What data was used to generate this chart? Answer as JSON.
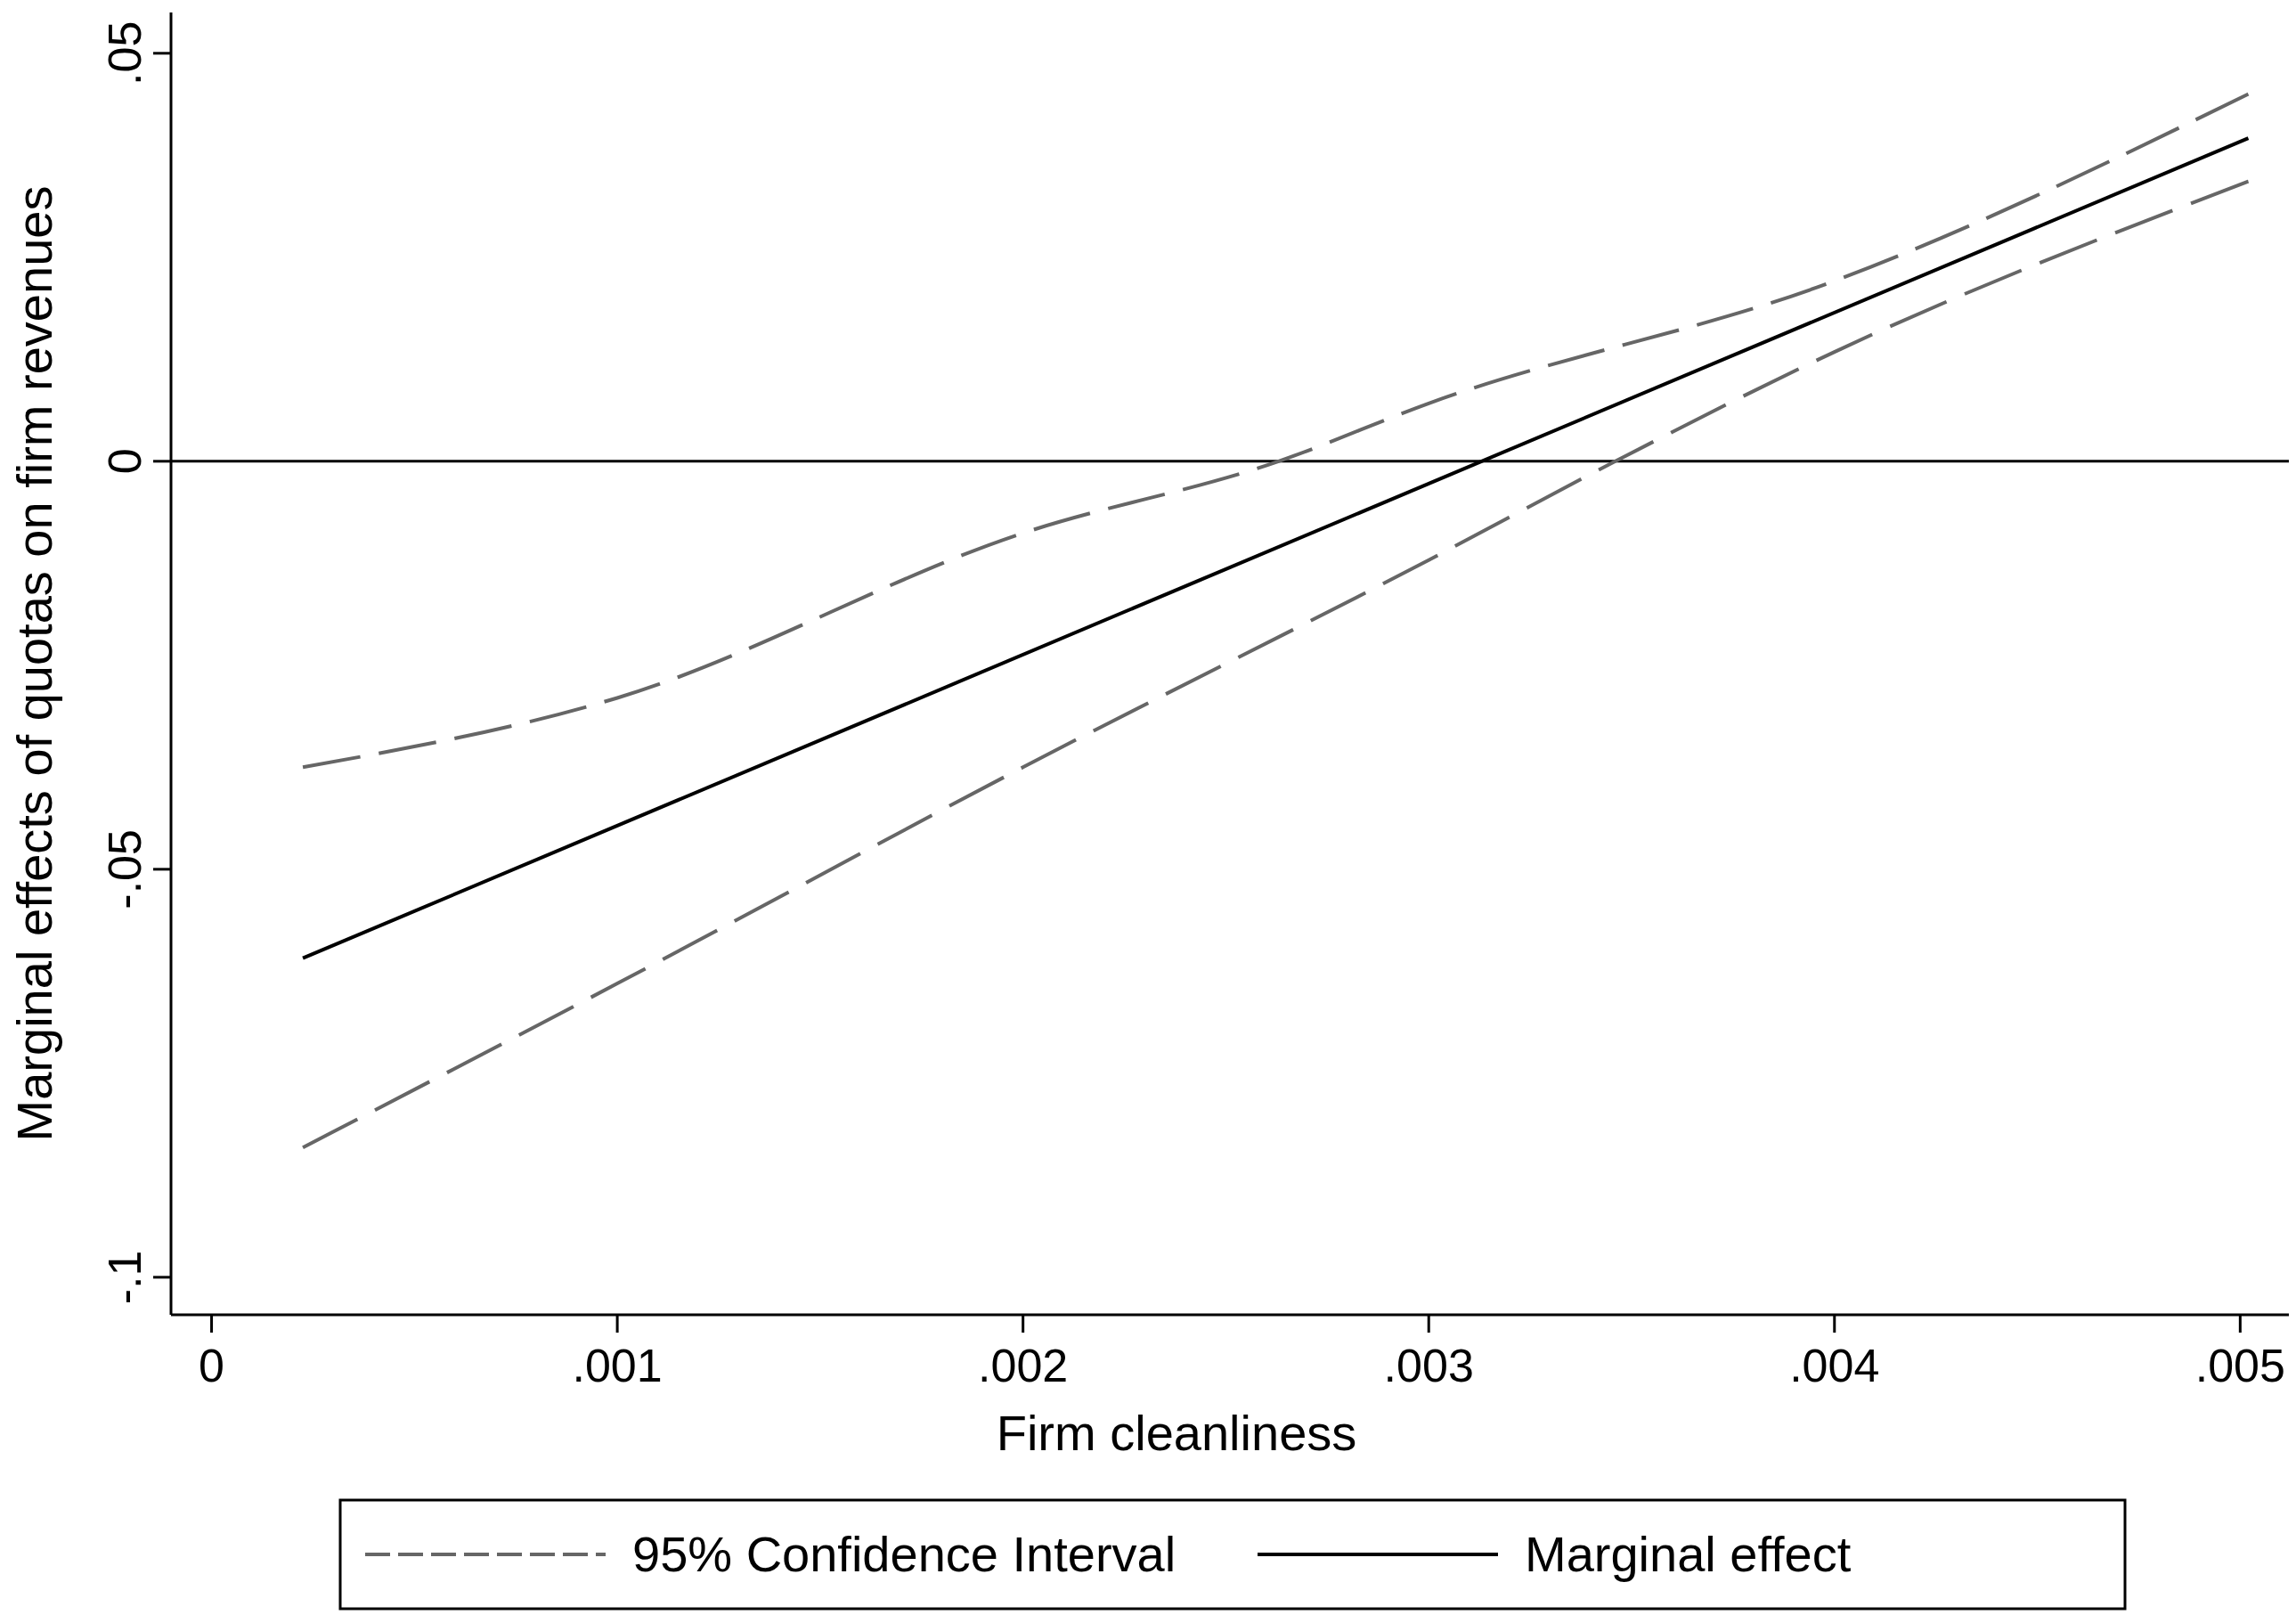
{
  "chart_data": {
    "type": "line",
    "xlabel": "Firm cleanliness",
    "ylabel": "Marginal effects of quotas on firm revenues",
    "xlim": [
      -0.0001,
      0.00512
    ],
    "ylim": [
      -0.1046,
      0.055
    ],
    "xticks": [
      0,
      {
        "value": 0.001,
        "label": ".001"
      },
      {
        "value": 0.002,
        "label": ".002"
      },
      {
        "value": 0.003,
        "label": ".003"
      },
      {
        "value": 0.004,
        "label": ".004"
      },
      {
        "value": 0.005,
        "label": ".005"
      }
    ],
    "yticks": [
      {
        "value": -0.1,
        "label": "-.1"
      },
      {
        "value": -0.05,
        "label": "-.05"
      },
      0,
      {
        "value": 0.05,
        "label": ".05"
      }
    ],
    "grid": false,
    "legend": "bottom",
    "marker": "none",
    "ref_lines": [
      {
        "axis": "y",
        "value": 0,
        "color": "#000000",
        "line_style": "solid"
      }
    ],
    "series": [
      {
        "name": "95% Confidence Interval",
        "color": "#666666",
        "line_style": "dashed",
        "x": [
          0.000225,
          0.001,
          0.002,
          0.00263,
          0.003,
          0.004,
          0.00502
        ],
        "values": [
          -0.0375,
          -0.029,
          -0.0088,
          0,
          0.0071,
          0.0221,
          0.045
        ]
      },
      {
        "color": "#666666",
        "line_style": "dashed",
        "x": [
          0.000225,
          0.001,
          0.002,
          0.003,
          0.00346,
          0.004,
          0.00502
        ],
        "values": [
          -0.0841,
          -0.064,
          -0.0375,
          -0.0121,
          0,
          0.0134,
          0.0343
        ]
      },
      {
        "name": "Marginal effect",
        "color": "#000000",
        "line_style": "solid",
        "x": [
          0.000225,
          0.00502
        ],
        "values": [
          -0.0609,
          0.0396
        ]
      }
    ]
  }
}
